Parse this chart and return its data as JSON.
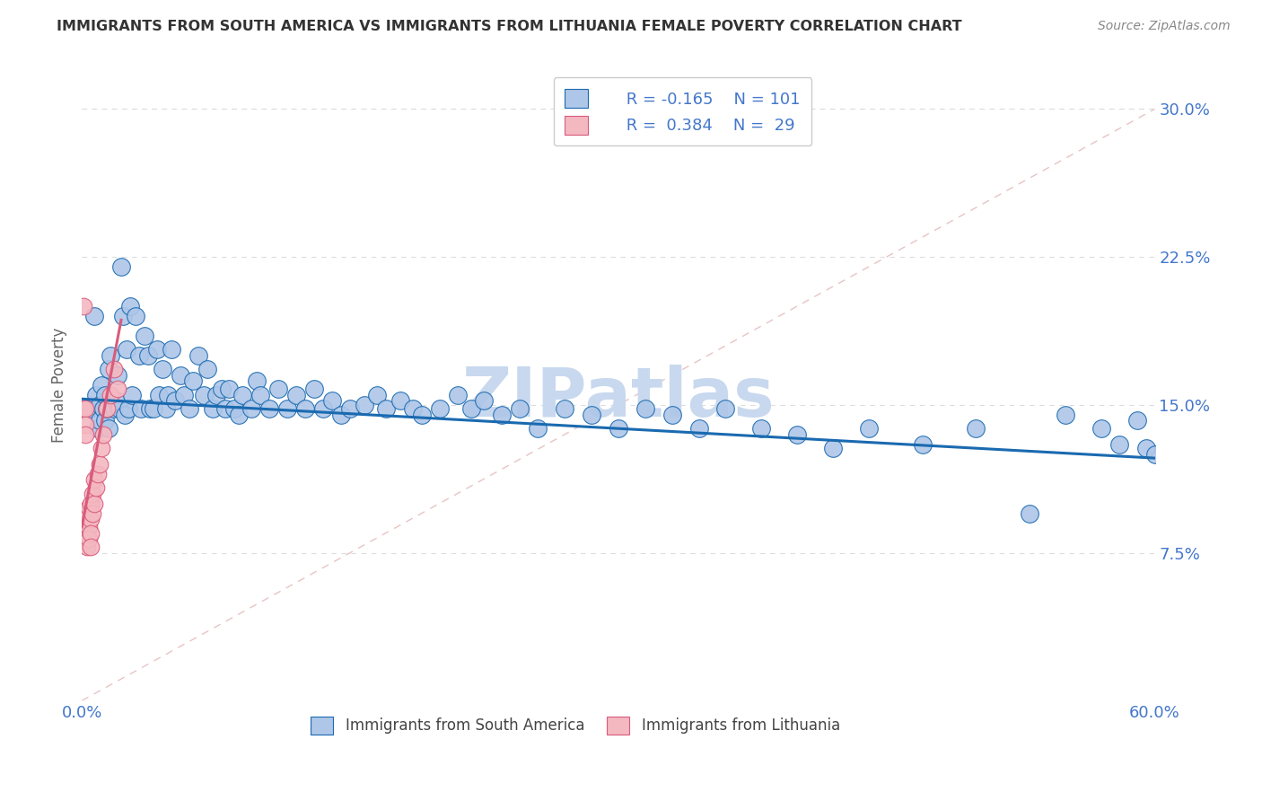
{
  "title": "IMMIGRANTS FROM SOUTH AMERICA VS IMMIGRANTS FROM LITHUANIA FEMALE POVERTY CORRELATION CHART",
  "source": "Source: ZipAtlas.com",
  "xlabel_blue": "Immigrants from South America",
  "xlabel_pink": "Immigrants from Lithuania",
  "ylabel": "Female Poverty",
  "watermark": "ZIPatlas",
  "blue_R": -0.165,
  "blue_N": 101,
  "pink_R": 0.384,
  "pink_N": 29,
  "xlim": [
    0.0,
    0.6
  ],
  "ylim": [
    0.0,
    0.32
  ],
  "blue_x": [
    0.005,
    0.007,
    0.008,
    0.009,
    0.01,
    0.01,
    0.011,
    0.012,
    0.013,
    0.013,
    0.014,
    0.015,
    0.015,
    0.016,
    0.017,
    0.018,
    0.019,
    0.02,
    0.021,
    0.022,
    0.023,
    0.024,
    0.025,
    0.026,
    0.027,
    0.028,
    0.03,
    0.032,
    0.033,
    0.035,
    0.037,
    0.038,
    0.04,
    0.042,
    0.043,
    0.045,
    0.047,
    0.048,
    0.05,
    0.052,
    0.055,
    0.057,
    0.06,
    0.062,
    0.065,
    0.068,
    0.07,
    0.073,
    0.075,
    0.078,
    0.08,
    0.082,
    0.085,
    0.088,
    0.09,
    0.095,
    0.098,
    0.1,
    0.105,
    0.11,
    0.115,
    0.12,
    0.125,
    0.13,
    0.135,
    0.14,
    0.145,
    0.15,
    0.158,
    0.165,
    0.17,
    0.178,
    0.185,
    0.19,
    0.2,
    0.21,
    0.218,
    0.225,
    0.235,
    0.245,
    0.255,
    0.27,
    0.285,
    0.3,
    0.315,
    0.33,
    0.345,
    0.36,
    0.38,
    0.4,
    0.42,
    0.44,
    0.47,
    0.5,
    0.53,
    0.55,
    0.57,
    0.58,
    0.59,
    0.595,
    0.6
  ],
  "blue_y": [
    0.148,
    0.195,
    0.155,
    0.138,
    0.15,
    0.142,
    0.16,
    0.148,
    0.155,
    0.142,
    0.148,
    0.168,
    0.138,
    0.175,
    0.15,
    0.148,
    0.152,
    0.165,
    0.148,
    0.22,
    0.195,
    0.145,
    0.178,
    0.148,
    0.2,
    0.155,
    0.195,
    0.175,
    0.148,
    0.185,
    0.175,
    0.148,
    0.148,
    0.178,
    0.155,
    0.168,
    0.148,
    0.155,
    0.178,
    0.152,
    0.165,
    0.155,
    0.148,
    0.162,
    0.175,
    0.155,
    0.168,
    0.148,
    0.155,
    0.158,
    0.148,
    0.158,
    0.148,
    0.145,
    0.155,
    0.148,
    0.162,
    0.155,
    0.148,
    0.158,
    0.148,
    0.155,
    0.148,
    0.158,
    0.148,
    0.152,
    0.145,
    0.148,
    0.15,
    0.155,
    0.148,
    0.152,
    0.148,
    0.145,
    0.148,
    0.155,
    0.148,
    0.152,
    0.145,
    0.148,
    0.138,
    0.148,
    0.145,
    0.138,
    0.148,
    0.145,
    0.138,
    0.148,
    0.138,
    0.135,
    0.128,
    0.138,
    0.13,
    0.138,
    0.095,
    0.145,
    0.138,
    0.13,
    0.142,
    0.128,
    0.125
  ],
  "pink_x": [
    0.001,
    0.001,
    0.002,
    0.002,
    0.002,
    0.003,
    0.003,
    0.003,
    0.003,
    0.004,
    0.004,
    0.004,
    0.005,
    0.005,
    0.005,
    0.005,
    0.006,
    0.006,
    0.007,
    0.007,
    0.008,
    0.009,
    0.01,
    0.011,
    0.012,
    0.014,
    0.016,
    0.018,
    0.02
  ],
  "pink_y": [
    0.2,
    0.148,
    0.148,
    0.14,
    0.135,
    0.095,
    0.088,
    0.082,
    0.078,
    0.098,
    0.088,
    0.082,
    0.1,
    0.092,
    0.085,
    0.078,
    0.105,
    0.095,
    0.112,
    0.1,
    0.108,
    0.115,
    0.12,
    0.128,
    0.135,
    0.148,
    0.155,
    0.168,
    0.158
  ],
  "blue_color": "#aec6e8",
  "pink_color": "#f4b8c1",
  "blue_line_color": "#1a6ab0",
  "pink_line_color": "#d95b7b",
  "diag_line_color": "#e8c4c4",
  "grid_color": "#dddddd",
  "title_color": "#333333",
  "axis_label_color": "#4477cc",
  "watermark_color": "#c8d8ee",
  "right_ytick_color": "#4477cc",
  "legend_R_color": "#4477cc",
  "legend_label_color": "#333333",
  "blue_trend_x1": 0.0,
  "blue_trend_x2": 0.6,
  "blue_trend_y1": 0.153,
  "blue_trend_y2": 0.123,
  "pink_trend_x1": 0.0,
  "pink_trend_x2": 0.022,
  "pink_trend_y1": 0.088,
  "pink_trend_y2": 0.193
}
